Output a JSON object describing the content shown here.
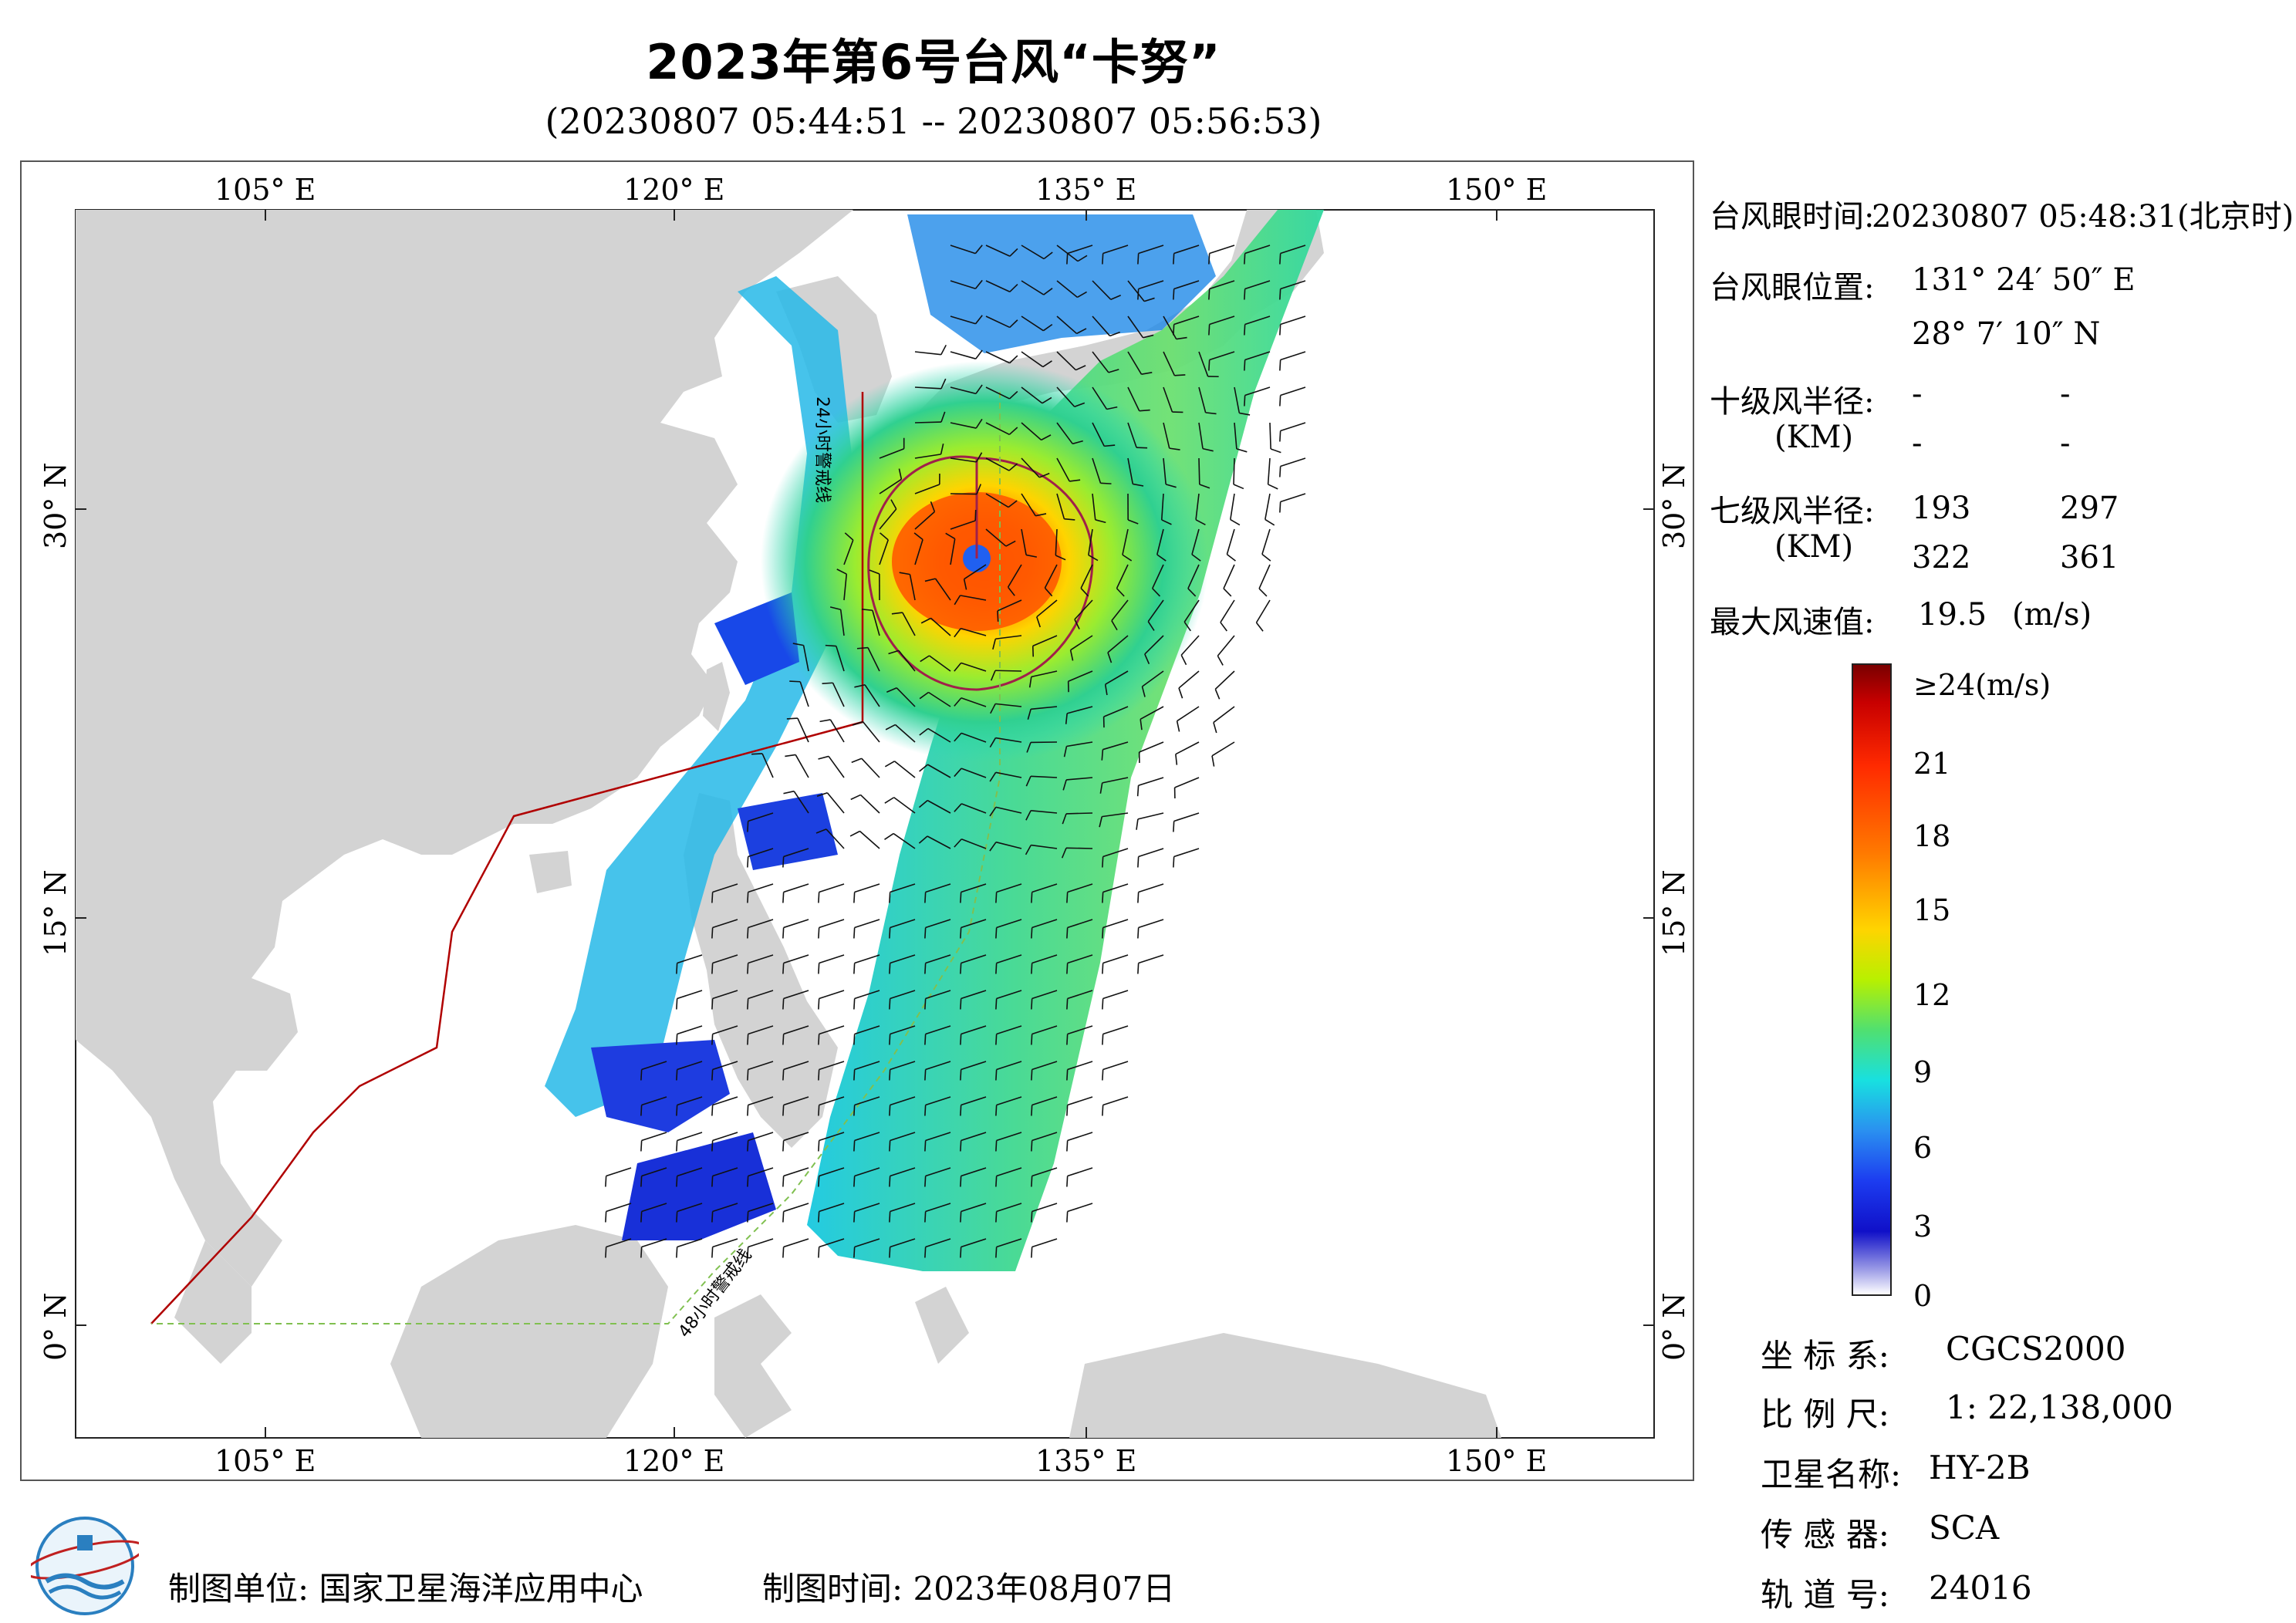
{
  "title": "2023年第6号台风“卡努”",
  "subtitle": "(20230807 05:44:51 -- 20230807 05:56:53)",
  "map": {
    "lon_labels": [
      "105° E",
      "120° E",
      "135° E",
      "150° E"
    ],
    "lat_labels": [
      "30° N",
      "15° N",
      "0° N"
    ],
    "warning_24h": "24小时警戒线",
    "warning_48h": "48小时警戒线",
    "colors": {
      "land": "#d3d3d3",
      "sea": "#ffffff",
      "warning_line": "#b00000",
      "warning_48_line": "#80c050"
    }
  },
  "typhoon_info": {
    "eye_time_label": "台风眼时间:",
    "eye_time_value": "20230807 05:48:31(北京时)",
    "eye_pos_label": "台风眼位置:",
    "eye_lon": "131° 24′ 50″ E",
    "eye_lat": "28° 7′ 10″ N",
    "r10_label": "十级风半径:",
    "r10_unit": "(KM)",
    "r10_values": [
      "-",
      "-",
      "-",
      "-"
    ],
    "r7_label": "七级风半径:",
    "r7_unit": "(KM)",
    "r7_values": [
      "193",
      "297",
      "322",
      "361"
    ],
    "max_wind_label": "最大风速值:",
    "max_wind_value": "19.5",
    "max_wind_unit": "(m/s)"
  },
  "colorbar": {
    "title": "≥24(m/s)",
    "ticks": [
      "21",
      "18",
      "15",
      "12",
      "9",
      "6",
      "3",
      "0"
    ]
  },
  "meta": {
    "crs_label": "坐 标 系:",
    "crs_value": "CGCS2000",
    "scale_label": "比 例 尺:",
    "scale_value": "1: 22,138,000",
    "sat_label": "卫星名称:",
    "sat_value": "HY-2B",
    "sensor_label": "传 感 器:",
    "sensor_value": "SCA",
    "orbit_label": "轨 道 号:",
    "orbit_value": "24016"
  },
  "footer": {
    "unit": "制图单位: 国家卫星海洋应用中心",
    "time": "制图时间:  2023年08月07日"
  }
}
